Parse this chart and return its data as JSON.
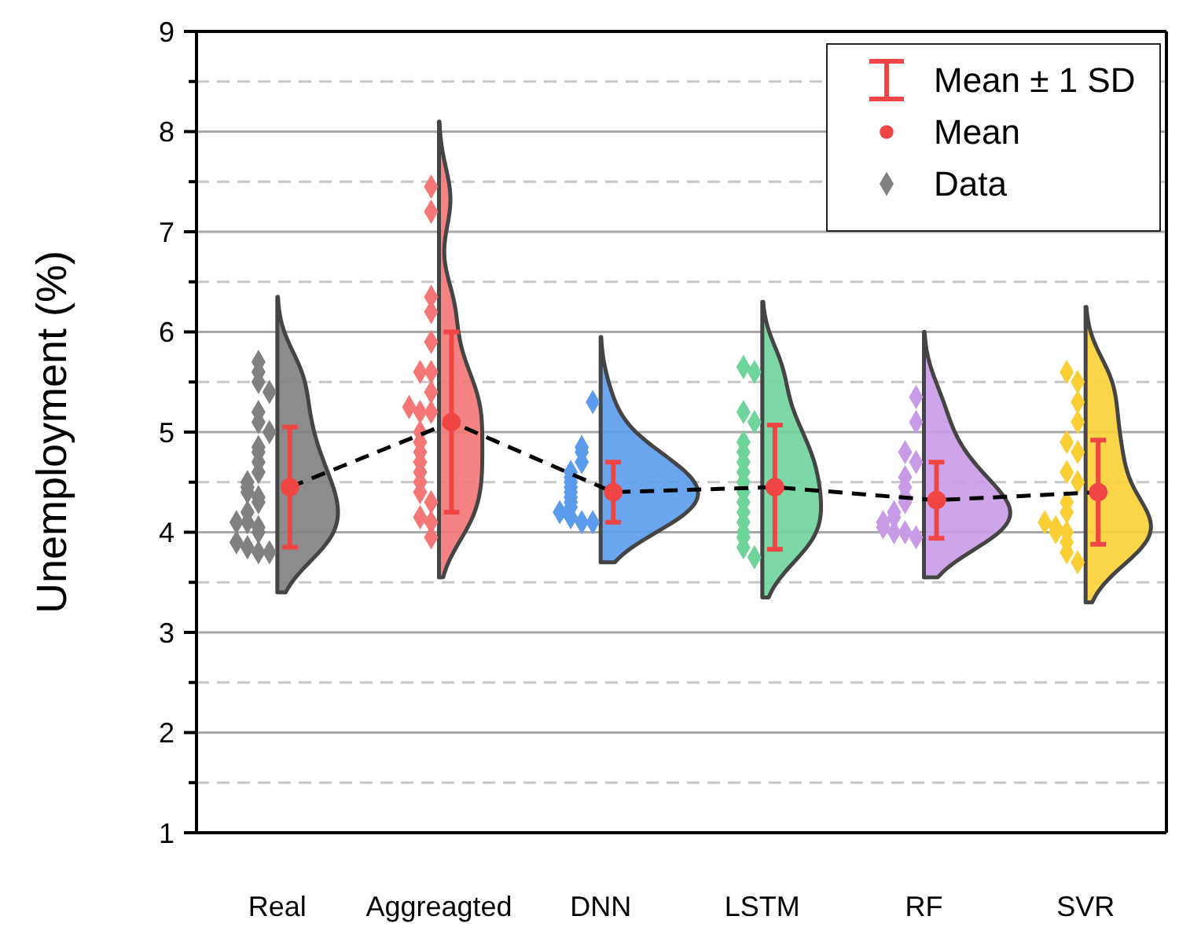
{
  "chart_data": {
    "type": "scatter",
    "ylabel": "Unemployment (%)",
    "categories": [
      "Real",
      "Aggreagted",
      "DNN",
      "LSTM",
      "RF",
      "SVR"
    ],
    "ylim": [
      1,
      9
    ],
    "yticks": [
      1,
      {
        "value": 1.5,
        "label": null
      },
      2,
      {
        "value": 2.5,
        "label": null
      },
      3,
      {
        "value": 3.5,
        "label": null
      },
      4,
      {
        "value": 4.5,
        "label": null
      },
      5,
      {
        "value": 5.5,
        "label": null
      },
      6,
      {
        "value": 6.5,
        "label": null
      },
      7,
      {
        "value": 7.5,
        "label": null
      },
      8,
      {
        "value": 8.5,
        "label": null
      },
      9
    ],
    "grid": true,
    "legend": "top right",
    "annotations": [
      "Mean ± 1 SD"
    ],
    "series": [
      {
        "name": "Mean",
        "type": "scatter",
        "marker": "circle",
        "color": "#f04545",
        "values": [
          4.45,
          5.1,
          4.4,
          4.45,
          4.32,
          4.4
        ],
        "errors": [
          0.6,
          0.9,
          0.3,
          0.62,
          0.38,
          0.52
        ]
      },
      {
        "name": "Data",
        "marker": "diamond",
        "color": "#808080",
        "x": [
          "Real",
          "Real",
          "Real",
          "Real",
          "Real",
          "Real",
          "Real",
          "Real",
          "Real",
          "Real",
          "Real",
          "Real",
          "Real",
          "Real",
          "Real",
          "Real",
          "Real",
          "Real",
          "Real",
          "Real",
          "Real",
          "Real",
          "Real",
          "Real",
          "Real",
          "Aggreagted",
          "Aggreagted",
          "Aggreagted",
          "Aggreagted",
          "Aggreagted",
          "Aggreagted",
          "Aggreagted",
          "Aggreagted",
          "Aggreagted",
          "Aggreagted",
          "Aggreagted",
          "Aggreagted",
          "Aggreagted",
          "Aggreagted",
          "Aggreagted",
          "Aggreagted",
          "Aggreagted",
          "Aggreagted",
          "Aggreagted",
          "Aggreagted",
          "Aggreagted",
          "Aggreagted",
          "DNN",
          "DNN",
          "DNN",
          "DNN",
          "DNN",
          "DNN",
          "DNN",
          "DNN",
          "DNN",
          "DNN",
          "DNN",
          "DNN",
          "DNN",
          "DNN",
          "DNN",
          "DNN",
          "LSTM",
          "LSTM",
          "LSTM",
          "LSTM",
          "LSTM",
          "LSTM",
          "LSTM",
          "LSTM",
          "LSTM",
          "LSTM",
          "LSTM",
          "LSTM",
          "LSTM",
          "LSTM",
          "LSTM",
          "LSTM",
          "LSTM",
          "RF",
          "RF",
          "RF",
          "RF",
          "RF",
          "RF",
          "RF",
          "RF",
          "RF",
          "RF",
          "RF",
          "RF",
          "RF",
          "RF",
          "RF",
          "SVR",
          "SVR",
          "SVR",
          "SVR",
          "SVR",
          "SVR",
          "SVR",
          "SVR",
          "SVR",
          "SVR",
          "SVR",
          "SVR",
          "SVR",
          "SVR",
          "SVR",
          "SVR",
          "SVR"
        ],
        "values": [
          3.8,
          3.8,
          3.85,
          3.9,
          4.0,
          4.05,
          4.1,
          4.1,
          4.2,
          4.3,
          4.35,
          4.4,
          4.45,
          4.5,
          4.6,
          4.7,
          4.8,
          4.85,
          5.0,
          5.1,
          5.2,
          5.4,
          5.5,
          5.6,
          5.7,
          3.95,
          4.1,
          4.15,
          4.3,
          4.4,
          4.5,
          4.6,
          4.7,
          4.8,
          4.9,
          5.0,
          5.2,
          5.2,
          5.25,
          5.4,
          5.6,
          5.6,
          5.9,
          6.2,
          6.35,
          7.2,
          7.45,
          4.1,
          4.1,
          4.15,
          4.2,
          4.25,
          4.3,
          4.35,
          4.4,
          4.45,
          4.5,
          4.55,
          4.6,
          4.7,
          4.8,
          4.85,
          5.3,
          3.75,
          3.85,
          3.95,
          4.0,
          4.1,
          4.2,
          4.3,
          4.4,
          4.5,
          4.6,
          4.7,
          4.8,
          4.9,
          5.1,
          5.2,
          5.6,
          5.65,
          3.95,
          4.0,
          4.0,
          4.05,
          4.1,
          4.15,
          4.2,
          4.3,
          4.35,
          4.45,
          4.55,
          4.7,
          4.8,
          5.1,
          5.35,
          3.7,
          3.8,
          3.9,
          4.0,
          4.0,
          4.05,
          4.1,
          4.2,
          4.3,
          4.5,
          4.6,
          4.8,
          4.9,
          5.1,
          5.3,
          5.5,
          5.6
        ],
        "colors": [
          "#808080",
          "#808080",
          "#808080",
          "#808080",
          "#808080",
          "#808080",
          "#808080",
          "#808080",
          "#808080",
          "#808080",
          "#808080",
          "#808080",
          "#808080",
          "#808080",
          "#808080",
          "#808080",
          "#808080",
          "#808080",
          "#808080",
          "#808080",
          "#808080",
          "#808080",
          "#808080",
          "#808080",
          "#808080",
          "#f47676",
          "#f47676",
          "#f47676",
          "#f47676",
          "#f47676",
          "#f47676",
          "#f47676",
          "#f47676",
          "#f47676",
          "#f47676",
          "#f47676",
          "#f47676",
          "#f47676",
          "#f47676",
          "#f47676",
          "#f47676",
          "#f47676",
          "#f47676",
          "#f47676",
          "#f47676",
          "#f47676",
          "#f47676",
          "#5b9bec",
          "#5b9bec",
          "#5b9bec",
          "#5b9bec",
          "#5b9bec",
          "#5b9bec",
          "#5b9bec",
          "#5b9bec",
          "#5b9bec",
          "#5b9bec",
          "#5b9bec",
          "#5b9bec",
          "#5b9bec",
          "#5b9bec",
          "#5b9bec",
          "#5b9bec",
          "#6fd39c",
          "#6fd39c",
          "#6fd39c",
          "#6fd39c",
          "#6fd39c",
          "#6fd39c",
          "#6fd39c",
          "#6fd39c",
          "#6fd39c",
          "#6fd39c",
          "#6fd39c",
          "#6fd39c",
          "#6fd39c",
          "#6fd39c",
          "#6fd39c",
          "#6fd39c",
          "#6fd39c",
          "#c89be6",
          "#c89be6",
          "#c89be6",
          "#c89be6",
          "#c89be6",
          "#c89be6",
          "#c89be6",
          "#c89be6",
          "#c89be6",
          "#c89be6",
          "#c89be6",
          "#c89be6",
          "#c89be6",
          "#c89be6",
          "#c89be6",
          "#f9cf35",
          "#f9cf35",
          "#f9cf35",
          "#f9cf35",
          "#f9cf35",
          "#f9cf35",
          "#f9cf35",
          "#f9cf35",
          "#f9cf35",
          "#f9cf35",
          "#f9cf35",
          "#f9cf35",
          "#f9cf35",
          "#f9cf35",
          "#f9cf35",
          "#f9cf35",
          "#f9cf35"
        ]
      },
      {
        "type": "line",
        "color": "#000000",
        "line_style": "dashed",
        "marker": "none",
        "values": [
          4.45,
          5.1,
          4.4,
          4.45,
          4.32,
          4.4
        ]
      }
    ]
  }
}
